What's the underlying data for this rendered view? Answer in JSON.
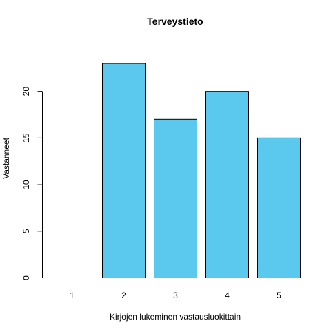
{
  "chart_data": {
    "type": "bar",
    "title": "Terveystieto",
    "xlabel": "Kirjojen lukeminen vastausluokittain",
    "ylabel": "Vastanneet",
    "categories": [
      "1",
      "2",
      "3",
      "4",
      "5"
    ],
    "values": [
      0,
      23,
      17,
      20,
      15
    ],
    "ylim": [
      0,
      24
    ],
    "yticks": [
      0,
      5,
      10,
      15,
      20
    ],
    "grid": false,
    "legend": "none",
    "bar_color": "#5BC8EE",
    "bar_border_color": "#000000"
  }
}
